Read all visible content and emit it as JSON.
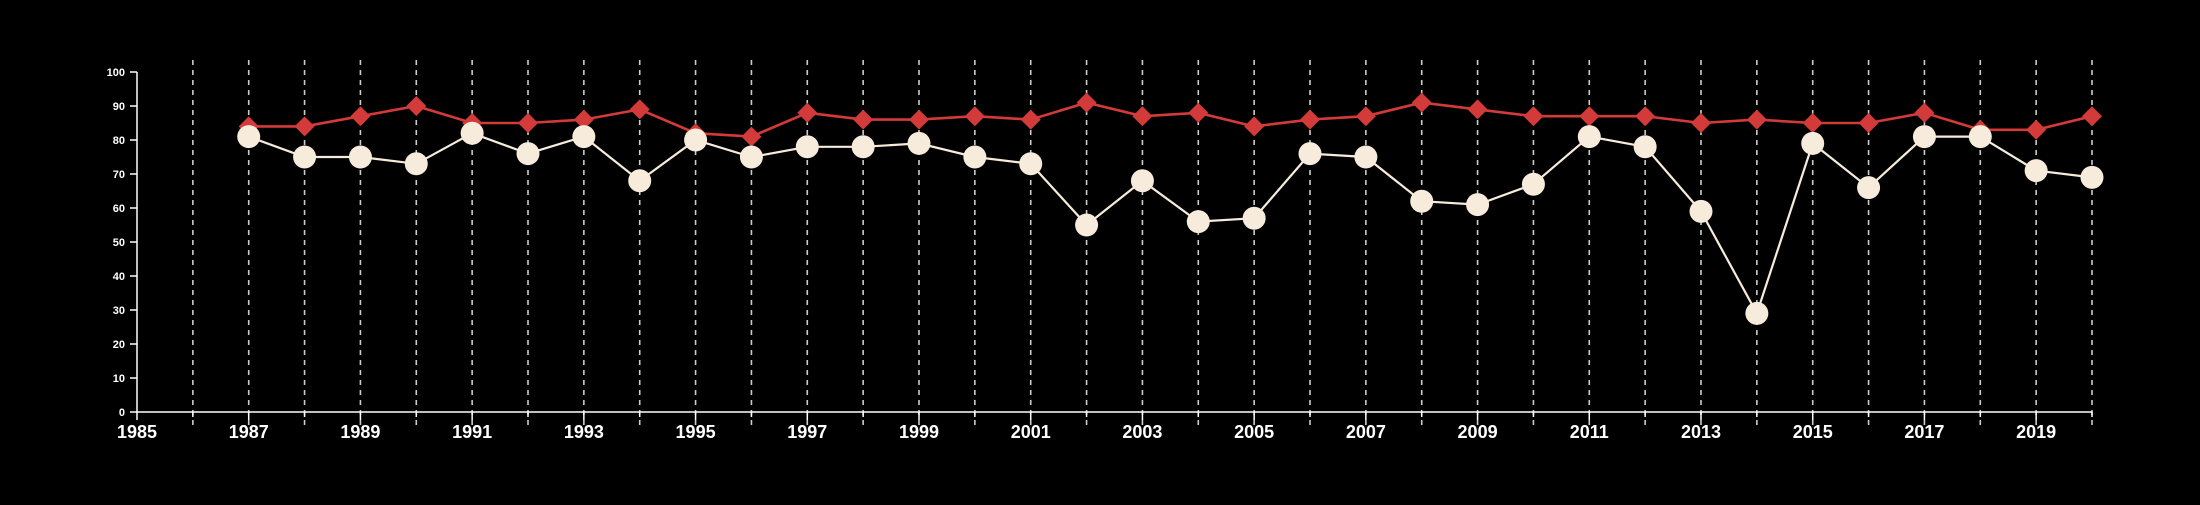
{
  "chart_data": {
    "type": "line",
    "title": "",
    "xlabel": "",
    "ylabel": "",
    "xlim": [
      1985,
      2020
    ],
    "ylim": [
      0,
      100
    ],
    "yticks": [
      0,
      10,
      20,
      30,
      40,
      50,
      60,
      70,
      80,
      90,
      100
    ],
    "xtick_labels": [
      1985,
      1987,
      1989,
      1991,
      1993,
      1995,
      1997,
      1999,
      2001,
      2003,
      2005,
      2007,
      2009,
      2011,
      2013,
      2015,
      2017,
      2019
    ],
    "grid": "vertical-dashed",
    "legend": "none",
    "x": [
      1987,
      1988,
      1989,
      1990,
      1991,
      1992,
      1993,
      1994,
      1995,
      1996,
      1997,
      1998,
      1999,
      2000,
      2001,
      2002,
      2003,
      2004,
      2005,
      2006,
      2007,
      2008,
      2009,
      2010,
      2011,
      2012,
      2013,
      2014,
      2015,
      2016,
      2017,
      2018,
      2019,
      2020
    ],
    "series": [
      {
        "color": "#d33a3a",
        "marker": "diamond",
        "values": [
          84,
          84,
          87,
          90,
          85,
          85,
          86,
          89,
          82,
          81,
          88,
          86,
          86,
          87,
          86,
          91,
          87,
          88,
          84,
          86,
          87,
          91,
          89,
          87,
          87,
          87,
          85,
          86,
          85,
          85,
          88,
          83,
          83,
          87
        ]
      },
      {
        "color": "#f7ebdc",
        "marker": "circle",
        "values": [
          81,
          75,
          75,
          73,
          82,
          76,
          81,
          68,
          80,
          75,
          78,
          78,
          79,
          75,
          73,
          55,
          68,
          56,
          57,
          76,
          75,
          62,
          61,
          67,
          81,
          78,
          59,
          29,
          79,
          66,
          81,
          81,
          71,
          69
        ]
      }
    ]
  }
}
